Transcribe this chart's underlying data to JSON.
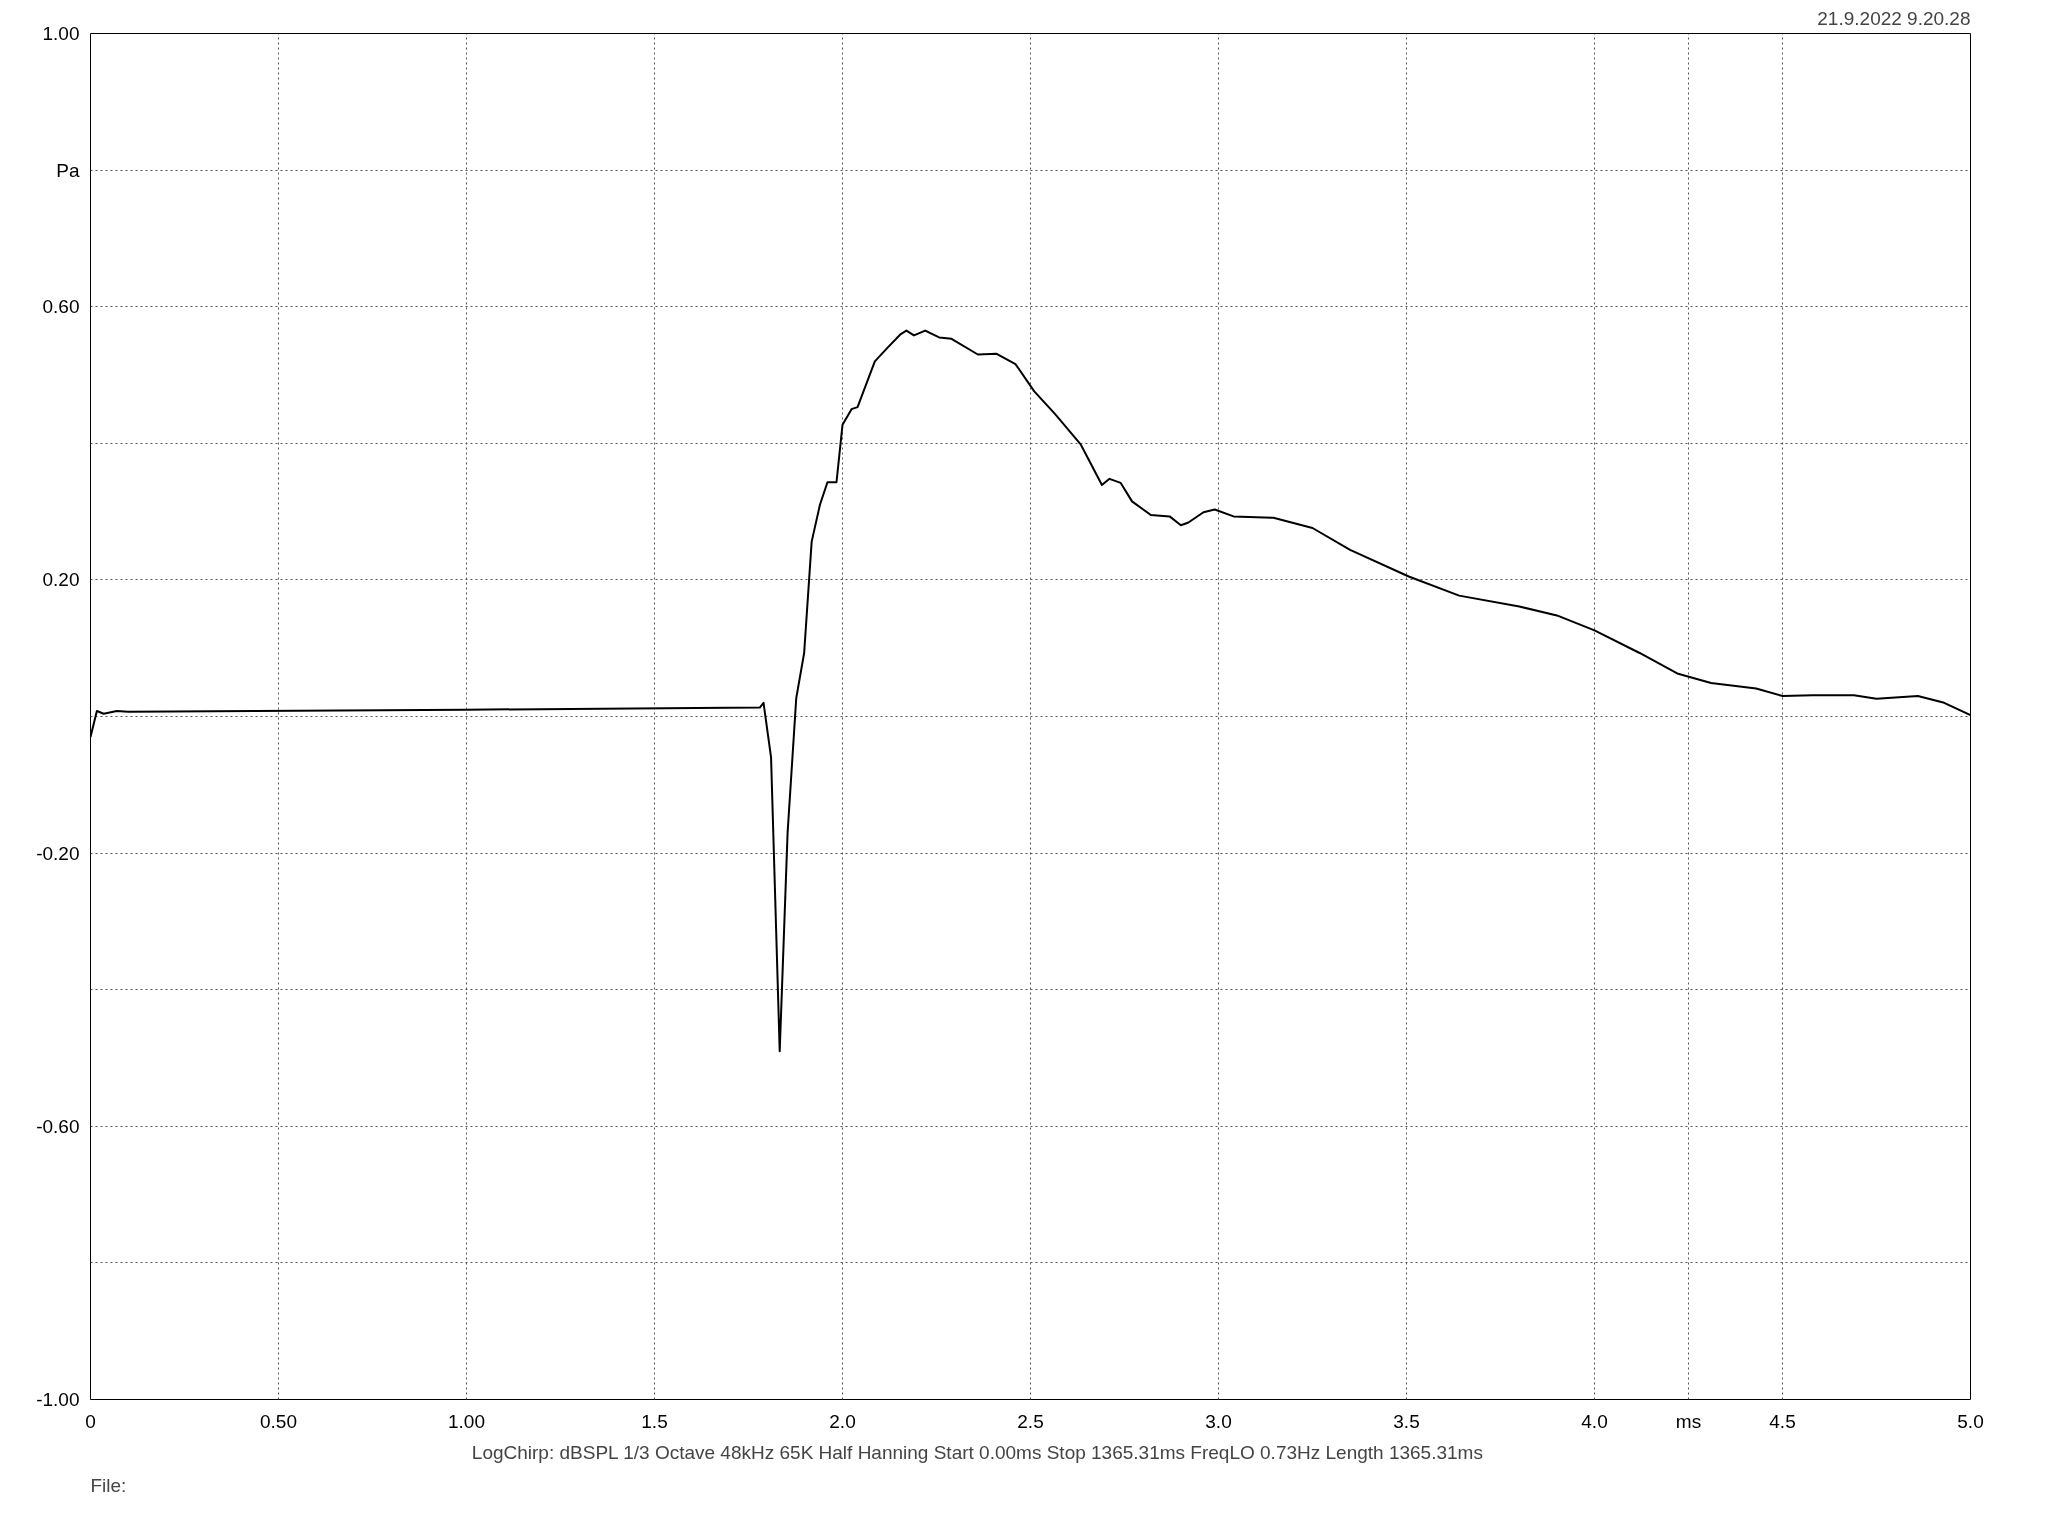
{
  "chart_data": {
    "type": "line",
    "annotations": [
      "21.9.2022 9.20.28",
      "LogChirp:  dBSPL   1/3 Octave   48kHz   65K   Half Hanning   Start 0.00ms    Stop 1365.31ms    FreqLO 0.73Hz    Length 1365.31ms",
      "File:"
    ],
    "xlim": [
      0,
      5
    ],
    "ylim": [
      -1,
      1
    ],
    "xticks": [
      0,
      {
        "value": 0.5,
        "label": "0.50"
      },
      {
        "value": 1,
        "label": "1.00"
      },
      1.5,
      {
        "value": 2,
        "label": "2.0"
      },
      2.5,
      {
        "value": 3,
        "label": "3.0"
      },
      3.5,
      {
        "value": 4,
        "label": "4.0"
      },
      {
        "value": 4.25,
        "label": "ms"
      },
      4.5,
      {
        "value": 5,
        "label": "5.0"
      }
    ],
    "yticks": [
      {
        "value": 1,
        "label": "1.00"
      },
      {
        "value": 0.8,
        "label": "Pa"
      },
      {
        "value": 0.6,
        "label": "0.60"
      },
      {
        "value": 0.4,
        "label": null
      },
      {
        "value": 0.2,
        "label": "0.20"
      },
      {
        "value": 0,
        "label": null
      },
      {
        "value": -0.2,
        "label": "-0.20"
      },
      {
        "value": -0.4,
        "label": null
      },
      {
        "value": -0.6,
        "label": "-0.60"
      },
      {
        "value": -0.8,
        "label": null
      },
      {
        "value": -1,
        "label": "-1.00"
      }
    ],
    "grid": true,
    "line_style": "solid",
    "series": [
      {
        "color": "#000000",
        "x": [
          0,
          0.017,
          0.035,
          0.07,
          0.1,
          1.0,
          1.78,
          1.79,
          1.81,
          1.833,
          1.854,
          1.877,
          1.898,
          1.918,
          1.94,
          1.96,
          1.984,
          2.0,
          2.024,
          2.04,
          2.086,
          2.12,
          2.155,
          2.17,
          2.19,
          2.22,
          2.257,
          2.29,
          2.36,
          2.41,
          2.46,
          2.51,
          2.565,
          2.634,
          2.69,
          2.71,
          2.74,
          2.77,
          2.82,
          2.87,
          2.9,
          2.92,
          2.96,
          2.99,
          3.04,
          3.146,
          3.25,
          3.35,
          3.506,
          3.64,
          3.8,
          3.9,
          4.0,
          4.12,
          4.22,
          4.31,
          4.43,
          4.5,
          4.58,
          4.69,
          4.75,
          4.86,
          4.93,
          5.0
        ],
        "values": [
          -0.03,
          0.008,
          0.004,
          0.008,
          0.007,
          0.01,
          0.013,
          0.02,
          -0.06,
          -0.49,
          -0.17,
          0.027,
          0.093,
          0.256,
          0.31,
          0.343,
          0.343,
          0.427,
          0.45,
          0.453,
          0.52,
          0.54,
          0.56,
          0.565,
          0.558,
          0.565,
          0.555,
          0.553,
          0.53,
          0.531,
          0.516,
          0.476,
          0.443,
          0.398,
          0.339,
          0.348,
          0.342,
          0.315,
          0.295,
          0.293,
          0.28,
          0.284,
          0.299,
          0.303,
          0.293,
          0.291,
          0.276,
          0.244,
          0.205,
          0.177,
          0.161,
          0.148,
          0.126,
          0.093,
          0.063,
          0.049,
          0.041,
          0.03,
          0.031,
          0.031,
          0.026,
          0.03,
          0.02,
          0.002
        ]
      }
    ]
  }
}
